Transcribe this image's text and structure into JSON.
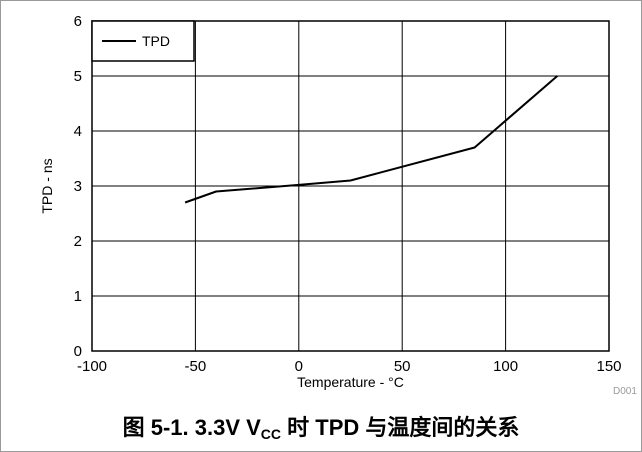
{
  "chart_data": {
    "type": "line",
    "title": "",
    "xlabel": "Temperature - °C",
    "ylabel": "TPD - ns",
    "xlim": [
      -100,
      150
    ],
    "ylim": [
      0,
      6
    ],
    "xticks": [
      -100,
      -50,
      0,
      50,
      100,
      150
    ],
    "yticks": [
      0,
      1,
      2,
      3,
      4,
      5,
      6
    ],
    "grid": true,
    "legend": "top-left",
    "series": [
      {
        "name": "TPD",
        "color": "#000000",
        "x": [
          -55,
          -40,
          0,
          25,
          85,
          125
        ],
        "y": [
          2.7,
          2.9,
          3.02,
          3.1,
          3.7,
          5.0
        ]
      }
    ],
    "figure_id": "D001"
  },
  "caption": {
    "prefix": "图 5-1. 3.3V V",
    "subscript": "CC",
    "suffix": " 时 TPD 与温度间的关系"
  }
}
